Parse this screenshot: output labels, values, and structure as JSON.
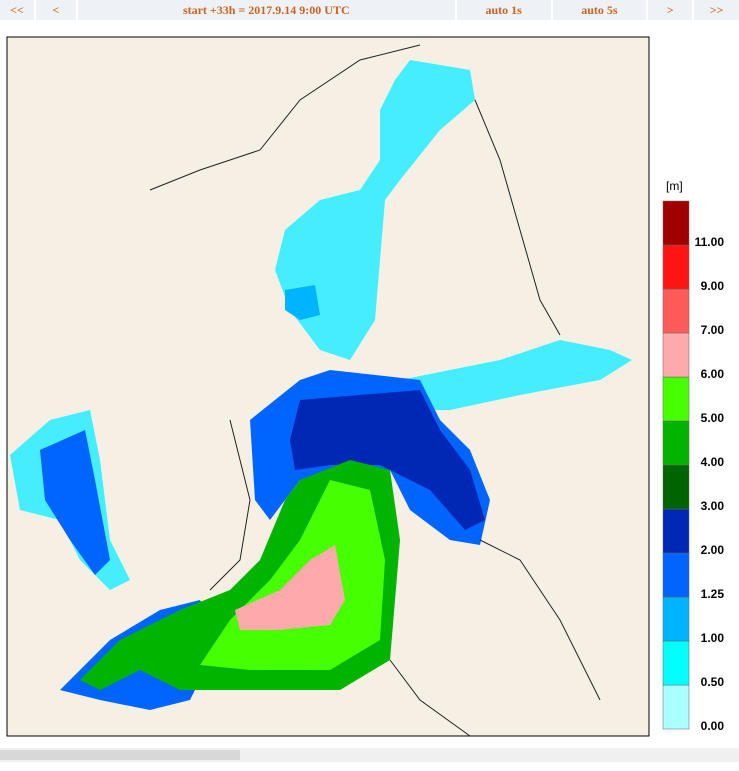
{
  "nav": {
    "first": "<<",
    "prev": "<",
    "status": "start +33h  =  2017.9.14 9:00 UTC",
    "auto1": "auto 1s",
    "auto5": "auto 5s",
    "next": ">",
    "last": ">>"
  },
  "legend": {
    "unit": "[m]",
    "levels": [
      {
        "label": "0.00",
        "color": "#aaffff"
      },
      {
        "label": "0.50",
        "color": "#00ffff"
      },
      {
        "label": "1.00",
        "color": "#00b4ff"
      },
      {
        "label": "1.25",
        "color": "#0064ff"
      },
      {
        "label": "2.00",
        "color": "#0028b4"
      },
      {
        "label": "3.00",
        "color": "#006400"
      },
      {
        "label": "4.00",
        "color": "#00b400"
      },
      {
        "label": "5.00",
        "color": "#46ff00"
      },
      {
        "label": "6.00",
        "color": "#ffaaaa"
      },
      {
        "label": "7.00",
        "color": "#ff5a5a"
      },
      {
        "label": "9.00",
        "color": "#ff1414"
      },
      {
        "label": "11.00",
        "color": "#a00000"
      }
    ]
  }
}
